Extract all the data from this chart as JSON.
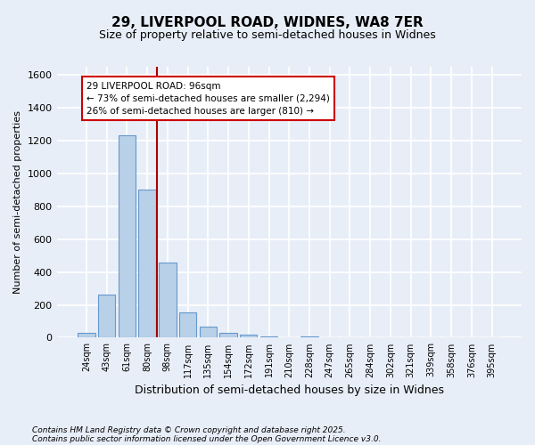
{
  "title": "29, LIVERPOOL ROAD, WIDNES, WA8 7ER",
  "subtitle": "Size of property relative to semi-detached houses in Widnes",
  "xlabel": "Distribution of semi-detached houses by size in Widnes",
  "ylabel": "Number of semi-detached properties",
  "footnote1": "Contains HM Land Registry data © Crown copyright and database right 2025.",
  "footnote2": "Contains public sector information licensed under the Open Government Licence v3.0.",
  "annotation_line1": "29 LIVERPOOL ROAD: 96sqm",
  "annotation_line2": "← 73% of semi-detached houses are smaller (2,294)",
  "annotation_line3": "26% of semi-detached houses are larger (810) →",
  "categories": [
    "24sqm",
    "43sqm",
    "61sqm",
    "80sqm",
    "98sqm",
    "117sqm",
    "135sqm",
    "154sqm",
    "172sqm",
    "191sqm",
    "210sqm",
    "228sqm",
    "247sqm",
    "265sqm",
    "284sqm",
    "302sqm",
    "321sqm",
    "339sqm",
    "358sqm",
    "376sqm",
    "395sqm"
  ],
  "values": [
    30,
    260,
    1230,
    900,
    460,
    155,
    65,
    30,
    20,
    10,
    5,
    10,
    0,
    0,
    0,
    0,
    0,
    0,
    0,
    0,
    0
  ],
  "bar_color": "#b8d0e8",
  "bar_edge_color": "#6699cc",
  "vline_color": "#aa0000",
  "vline_x_index": 4,
  "ylim": [
    0,
    1650
  ],
  "yticks": [
    0,
    200,
    400,
    600,
    800,
    1000,
    1200,
    1400,
    1600
  ],
  "background_color": "#e8eef8",
  "grid_color": "#ffffff",
  "title_fontsize": 11,
  "subtitle_fontsize": 9,
  "annotation_fontsize": 7.5,
  "tick_fontsize": 7,
  "ylabel_fontsize": 8,
  "xlabel_fontsize": 9,
  "footnote_fontsize": 6.5
}
